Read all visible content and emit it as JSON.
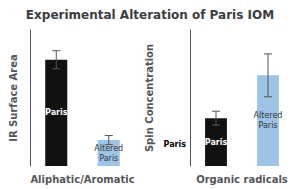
{
  "chart_data": [
    {
      "type": "bar",
      "title": "Experimental Alteration of Paris IOM",
      "categories": [
        "Paris",
        "Altered\nParis"
      ],
      "values": [
        0.82,
        0.2
      ],
      "errors": [
        0.07,
        0.035
      ],
      "colors": [
        "#111111",
        "#9dc3e6"
      ],
      "xlabel": "Aliphatic/Aromatic",
      "ylabel": "IR Surface Area",
      "ylim": [
        0,
        1.05
      ],
      "tick_labels": false,
      "grid": false
    },
    {
      "type": "bar",
      "categories": [
        "Paris",
        "Altered\nParis"
      ],
      "values": [
        0.38,
        0.72
      ],
      "errors": [
        0.055,
        0.17
      ],
      "colors": [
        "#111111",
        "#9dc3e6"
      ],
      "xlabel": "Organic radicals",
      "ylabel": "Spin Concentration",
      "ylim": [
        0,
        1.08
      ],
      "tick_labels": false,
      "grid": false,
      "annotations": [
        "Paris"
      ]
    }
  ]
}
